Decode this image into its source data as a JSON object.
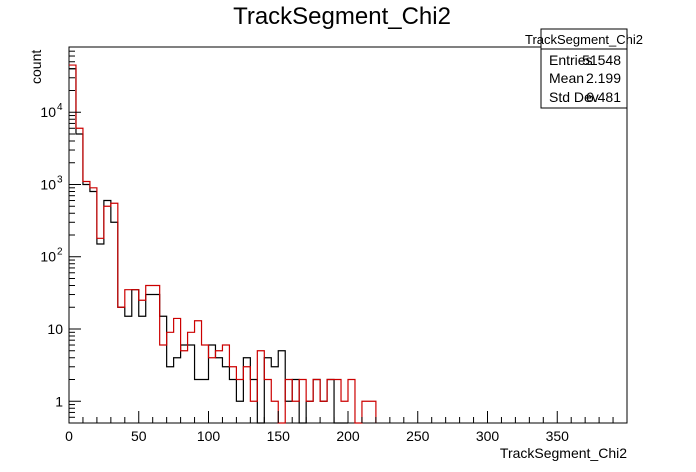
{
  "chart_data": {
    "type": "histogram",
    "title": "TrackSegment_Chi2",
    "xlabel": "TrackSegment_Chi2",
    "ylabel": "count",
    "xlim": [
      0,
      400
    ],
    "ylim": [
      0.5,
      80000
    ],
    "log_y": true,
    "grid": false,
    "bin_width": 5,
    "x_ticks": [
      "0",
      "50",
      "100",
      "150",
      "200",
      "250",
      "300",
      "350"
    ],
    "y_ticks": [
      {
        "base": "1",
        "exp": "",
        "value": 1
      },
      {
        "base": "10",
        "exp": "",
        "value": 10
      },
      {
        "base": "10",
        "exp": "2",
        "value": 100
      },
      {
        "base": "10",
        "exp": "3",
        "value": 1000
      },
      {
        "base": "10",
        "exp": "4",
        "value": 10000
      }
    ],
    "stats": {
      "name": "TrackSegment_Chi2",
      "rows": [
        {
          "label": "Entries",
          "value": "51548"
        },
        {
          "label": "Mean",
          "value": "2.199"
        },
        {
          "label": "Std Dev",
          "value": "6.481"
        }
      ]
    },
    "series": [
      {
        "color": "#000000",
        "values": [
          40000,
          5000,
          1000,
          800,
          150,
          600,
          300,
          20,
          15,
          35,
          15,
          30,
          30,
          15,
          3,
          4,
          6,
          6,
          2,
          2,
          6,
          4,
          3,
          2,
          1,
          4,
          2,
          0,
          4,
          3,
          5,
          1,
          2,
          0,
          1,
          2,
          1,
          2,
          0,
          0
        ]
      },
      {
        "color": "#cc0000",
        "values": [
          45000,
          6000,
          1100,
          900,
          180,
          500,
          550,
          20,
          35,
          35,
          25,
          40,
          40,
          6,
          9,
          14,
          5,
          9,
          13,
          6,
          4,
          5,
          6,
          3,
          2,
          3,
          1,
          5,
          2,
          1,
          0,
          2,
          1,
          2,
          1,
          2,
          1,
          2,
          2,
          1,
          2,
          0,
          1,
          1
        ]
      }
    ]
  }
}
